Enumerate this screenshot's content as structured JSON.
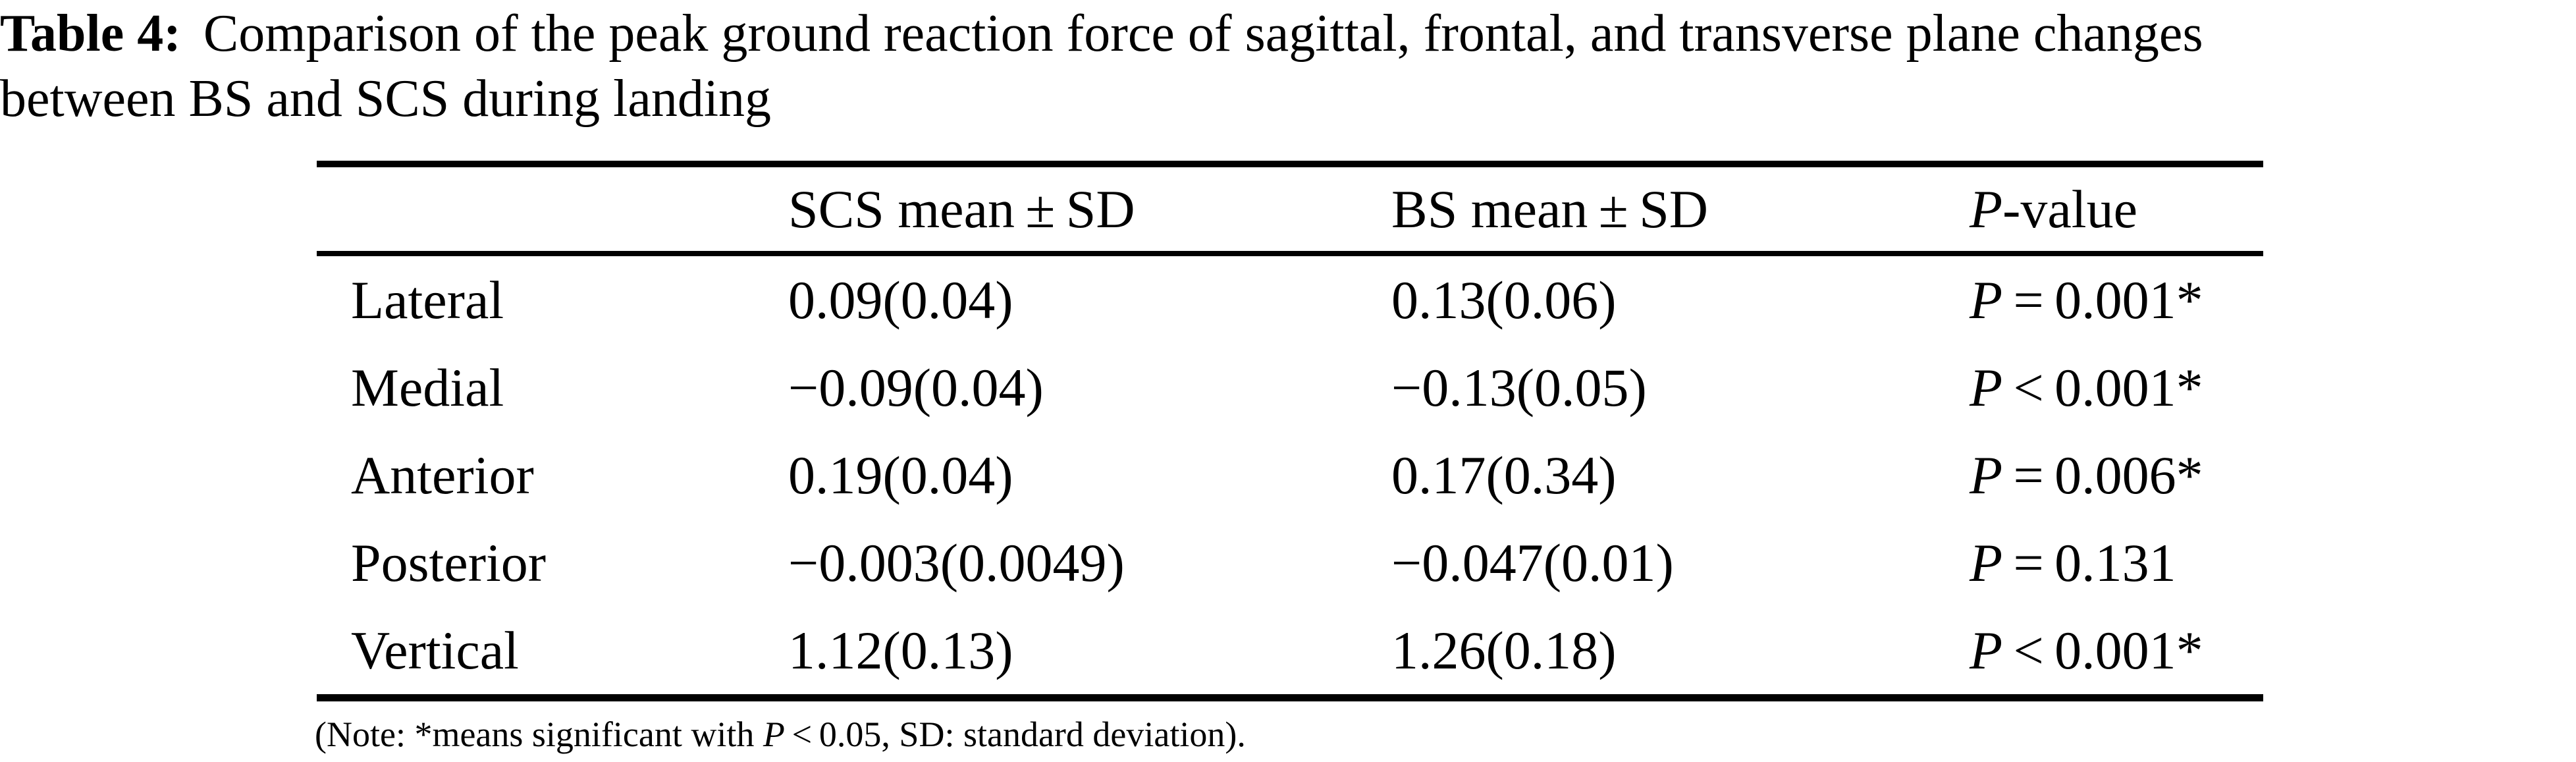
{
  "caption": {
    "label": "Table 4:",
    "line1": "Comparison of the peak ground reaction force of sagittal, frontal, and transverse plane changes",
    "line2": "between BS and SCS during landing"
  },
  "table": {
    "header": {
      "row_label": "",
      "scs": "SCS mean ± SD",
      "bs": "BS mean ± SD",
      "p_symbol": "P",
      "p_rest": "-value"
    },
    "rows": [
      {
        "label": "Lateral",
        "scs": "0.09(0.04)",
        "bs": "0.13(0.06)",
        "p_symbol": "P",
        "p_rest": " = 0.001*"
      },
      {
        "label": "Medial",
        "scs": "−0.09(0.04)",
        "bs": "−0.13(0.05)",
        "p_symbol": "P",
        "p_rest": " < 0.001*"
      },
      {
        "label": "Anterior",
        "scs": "0.19(0.04)",
        "bs": "0.17(0.34)",
        "p_symbol": "P",
        "p_rest": " = 0.006*"
      },
      {
        "label": "Posterior",
        "scs": "−0.003(0.0049)",
        "bs": "−0.047(0.01)",
        "p_symbol": "P",
        "p_rest": " = 0.131"
      },
      {
        "label": "Vertical",
        "scs": "1.12(0.13)",
        "bs": "1.26(0.18)",
        "p_symbol": "P",
        "p_rest": " < 0.001*"
      }
    ]
  },
  "footnote": {
    "pre": "(Note: *means significant with ",
    "p_symbol": "P",
    "post": " < 0.05, SD: standard deviation)."
  }
}
